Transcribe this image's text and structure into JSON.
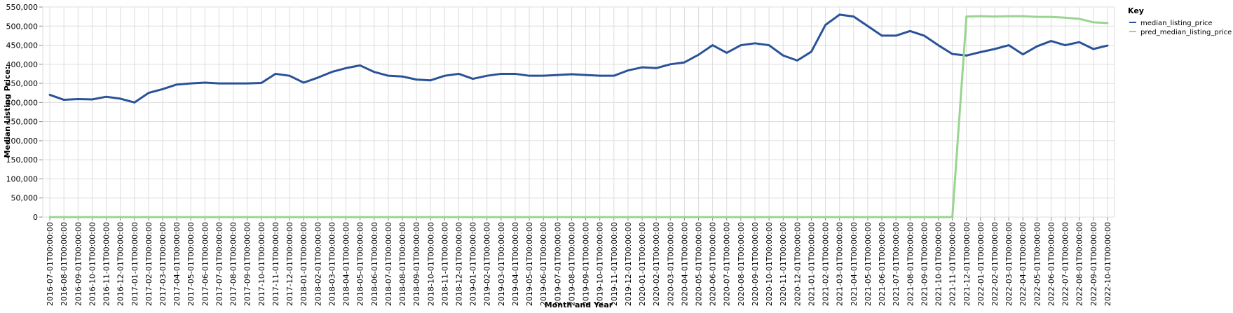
{
  "chart_data": {
    "type": "line",
    "xlabel": "Month and Year",
    "ylabel": "Median Listing Price:",
    "ylim": [
      0,
      550000
    ],
    "y_ticks": [
      "0",
      "50,000",
      "100,000",
      "150,000",
      "200,000",
      "250,000",
      "300,000",
      "350,000",
      "400,000",
      "450,000",
      "500,000",
      "550,000"
    ],
    "y_tick_values": [
      0,
      50000,
      100000,
      150000,
      200000,
      250000,
      300000,
      350000,
      400000,
      450000,
      500000,
      550000
    ],
    "grid": true,
    "legend_title": "Key",
    "legend_position": "right",
    "x": [
      "2016-07-01T00:00:00",
      "2016-08-01T00:00:00",
      "2016-09-01T00:00:00",
      "2016-10-01T00:00:00",
      "2016-11-01T00:00:00",
      "2016-12-01T00:00:00",
      "2017-01-01T00:00:00",
      "2017-02-01T00:00:00",
      "2017-03-01T00:00:00",
      "2017-04-01T00:00:00",
      "2017-05-01T00:00:00",
      "2017-06-01T00:00:00",
      "2017-07-01T00:00:00",
      "2017-08-01T00:00:00",
      "2017-09-01T00:00:00",
      "2017-10-01T00:00:00",
      "2017-11-01T00:00:00",
      "2017-12-01T00:00:00",
      "2018-01-01T00:00:00",
      "2018-02-01T00:00:00",
      "2018-03-01T00:00:00",
      "2018-04-01T00:00:00",
      "2018-05-01T00:00:00",
      "2018-06-01T00:00:00",
      "2018-07-01T00:00:00",
      "2018-08-01T00:00:00",
      "2018-09-01T00:00:00",
      "2018-10-01T00:00:00",
      "2018-11-01T00:00:00",
      "2018-12-01T00:00:00",
      "2019-01-01T00:00:00",
      "2019-02-01T00:00:00",
      "2019-03-01T00:00:00",
      "2019-04-01T00:00:00",
      "2019-05-01T00:00:00",
      "2019-06-01T00:00:00",
      "2019-07-01T00:00:00",
      "2019-08-01T00:00:00",
      "2019-09-01T00:00:00",
      "2019-10-01T00:00:00",
      "2019-11-01T00:00:00",
      "2019-12-01T00:00:00",
      "2020-01-01T00:00:00",
      "2020-02-01T00:00:00",
      "2020-03-01T00:00:00",
      "2020-04-01T00:00:00",
      "2020-05-01T00:00:00",
      "2020-06-01T00:00:00",
      "2020-07-01T00:00:00",
      "2020-08-01T00:00:00",
      "2020-09-01T00:00:00",
      "2020-10-01T00:00:00",
      "2020-11-01T00:00:00",
      "2020-12-01T00:00:00",
      "2021-01-01T00:00:00",
      "2021-02-01T00:00:00",
      "2021-03-01T00:00:00",
      "2021-04-01T00:00:00",
      "2021-05-01T00:00:00",
      "2021-06-01T00:00:00",
      "2021-07-01T00:00:00",
      "2021-08-01T00:00:00",
      "2021-09-01T00:00:00",
      "2021-10-01T00:00:00",
      "2021-11-01T00:00:00",
      "2021-12-01T00:00:00",
      "2022-01-01T00:00:00",
      "2022-02-01T00:00:00",
      "2022-03-01T00:00:00",
      "2022-04-01T00:00:00",
      "2022-05-01T00:00:00",
      "2022-06-01T00:00:00",
      "2022-07-01T00:00:00",
      "2022-08-01T00:00:00",
      "2022-09-01T00:00:00",
      "2022-10-01T00:00:00"
    ],
    "series": [
      {
        "name": "median_listing_price",
        "color": "#2a5298",
        "values": [
          320000,
          307000,
          309000,
          308000,
          315000,
          310000,
          300000,
          325000,
          335000,
          347000,
          350000,
          352000,
          350000,
          350000,
          350000,
          351000,
          375000,
          370000,
          352000,
          365000,
          380000,
          390000,
          397000,
          380000,
          370000,
          368000,
          360000,
          358000,
          370000,
          375000,
          362000,
          370000,
          375000,
          375000,
          370000,
          370000,
          372000,
          374000,
          372000,
          370000,
          370000,
          384000,
          392000,
          390000,
          400000,
          405000,
          425000,
          450000,
          430000,
          450000,
          455000,
          450000,
          423000,
          410000,
          433000,
          503000,
          530000,
          525000,
          500000,
          475000,
          475000,
          487000,
          475000,
          450000,
          427000,
          423000,
          432000,
          440000,
          450000,
          426000,
          447000,
          461000,
          450000,
          458000,
          440000,
          449000
        ]
      },
      {
        "name": "pred_median_listing_price",
        "color": "#98d58f",
        "values": [
          0,
          0,
          0,
          0,
          0,
          0,
          0,
          0,
          0,
          0,
          0,
          0,
          0,
          0,
          0,
          0,
          0,
          0,
          0,
          0,
          0,
          0,
          0,
          0,
          0,
          0,
          0,
          0,
          0,
          0,
          0,
          0,
          0,
          0,
          0,
          0,
          0,
          0,
          0,
          0,
          0,
          0,
          0,
          0,
          0,
          0,
          0,
          0,
          0,
          0,
          0,
          0,
          0,
          0,
          0,
          0,
          0,
          0,
          0,
          0,
          0,
          0,
          0,
          0,
          0,
          525000,
          526000,
          525000,
          526000,
          526000,
          524000,
          524000,
          522000,
          519000,
          510000,
          508000
        ]
      }
    ]
  }
}
